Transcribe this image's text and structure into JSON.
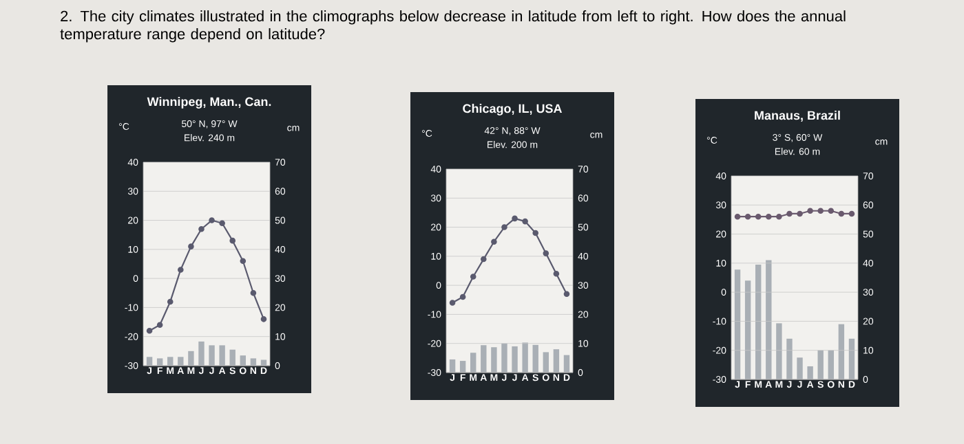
{
  "chart_data": [
    {
      "type": "other",
      "title": "2. The city climates illustrated in the climographs below decrease in latitude from left to right. How does the annual temperature range depend on latitude?"
    },
    {
      "type": "bar",
      "title": "Winnipeg, Man., Can.",
      "subtitle": "50° N, 97° W",
      "annotations": [
        "Elev. 240 m"
      ],
      "ylabel": "°C",
      "y2label": "cm",
      "categories": [
        "J",
        "F",
        "M",
        "A",
        "M",
        "J",
        "J",
        "A",
        "S",
        "O",
        "N",
        "D"
      ],
      "series": [
        {
          "type": "bar",
          "axis": "y2",
          "color": "#a9afb5",
          "values": [
            3,
            2.5,
            3,
            3,
            5,
            8.3,
            7,
            7,
            5.5,
            3.5,
            2.5,
            2
          ]
        },
        {
          "type": "line",
          "axis": "y",
          "color": "#5a5a6e",
          "values": [
            -18,
            -16,
            -8,
            3,
            11,
            17,
            20,
            19,
            13,
            6,
            -5,
            -14
          ]
        }
      ],
      "ylim": [
        -30,
        40
      ],
      "yticks": [
        -30,
        -20,
        -10,
        0,
        10,
        20,
        30,
        40
      ],
      "y2lim": [
        0,
        70
      ],
      "y2ticks": [
        0,
        10,
        20,
        30,
        40,
        50,
        60,
        70
      ],
      "grid": "y",
      "marker": "circle"
    },
    {
      "type": "bar",
      "title": "Chicago, IL, USA",
      "subtitle": "42° N, 88° W",
      "annotations": [
        "Elev. 200 m"
      ],
      "ylabel": "°C",
      "y2label": "cm",
      "categories": [
        "J",
        "F",
        "M",
        "A",
        "M",
        "J",
        "J",
        "A",
        "S",
        "O",
        "N",
        "D"
      ],
      "series": [
        {
          "type": "bar",
          "axis": "y2",
          "color": "#a9afb5",
          "values": [
            4.5,
            4,
            6.8,
            9.4,
            8.7,
            10,
            9,
            10.3,
            9.5,
            7,
            8,
            6
          ]
        },
        {
          "type": "line",
          "axis": "y",
          "color": "#5a5a6e",
          "values": [
            -6,
            -4,
            3,
            9,
            15,
            20,
            23,
            22,
            18,
            11,
            4,
            -3
          ]
        }
      ],
      "ylim": [
        -30,
        40
      ],
      "yticks": [
        -30,
        -20,
        -10,
        0,
        10,
        20,
        30,
        40
      ],
      "y2lim": [
        0,
        70
      ],
      "y2ticks": [
        0,
        10,
        20,
        30,
        40,
        50,
        60,
        70
      ],
      "grid": "y",
      "marker": "circle"
    },
    {
      "type": "bar",
      "title": "Manaus, Brazil",
      "subtitle": "3° S, 60° W",
      "annotations": [
        "Elev. 60 m"
      ],
      "ylabel": "°C",
      "y2label": "cm",
      "categories": [
        "J",
        "F",
        "M",
        "A",
        "M",
        "J",
        "J",
        "A",
        "S",
        "O",
        "N",
        "D"
      ],
      "series": [
        {
          "type": "bar",
          "axis": "y2",
          "color": "#a9afb5",
          "values": [
            37.8,
            34,
            39.5,
            41,
            19.3,
            14,
            7.5,
            4.5,
            10,
            10,
            19,
            14
          ]
        },
        {
          "type": "line",
          "axis": "y",
          "color": "#6a5a6e",
          "values": [
            26,
            26,
            26,
            26,
            26,
            27,
            27,
            28,
            28,
            28,
            27,
            27
          ]
        }
      ],
      "ylim": [
        -30,
        40
      ],
      "yticks": [
        -30,
        -20,
        -10,
        0,
        10,
        20,
        30,
        40
      ],
      "y2lim": [
        0,
        70
      ],
      "y2ticks": [
        0,
        10,
        20,
        30,
        40,
        50,
        60,
        70
      ],
      "grid": "y",
      "marker": "circle"
    }
  ]
}
